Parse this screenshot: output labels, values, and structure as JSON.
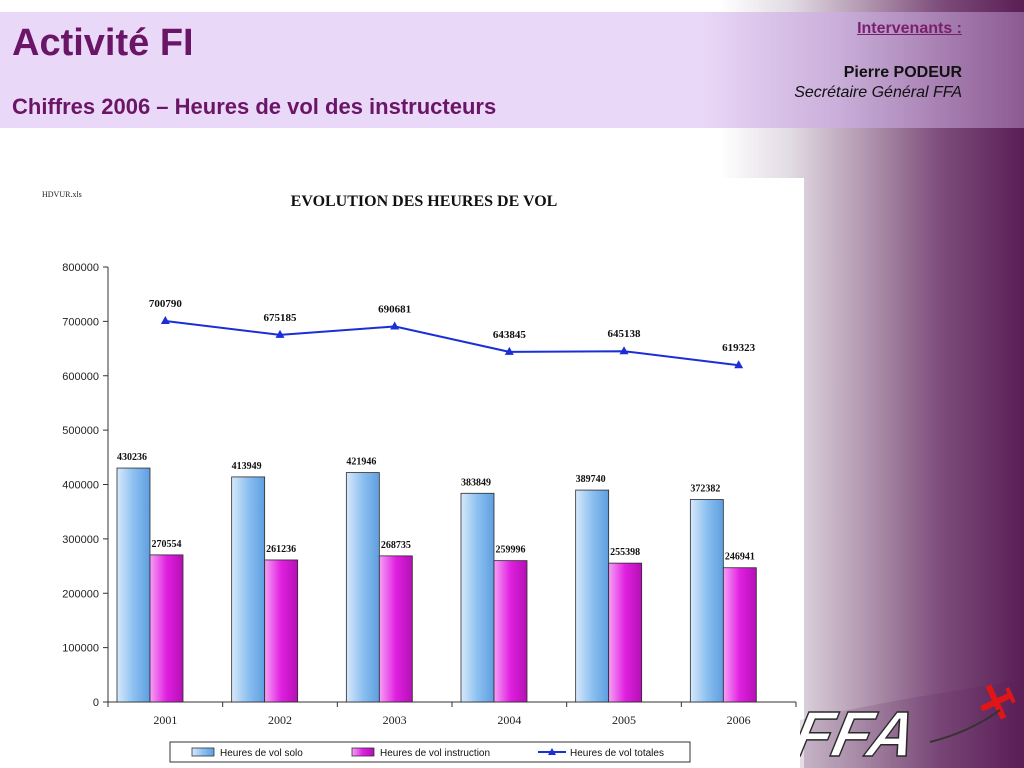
{
  "header": {
    "title": "Activité FI",
    "subtitle": "Chiffres 2006 – Heures de vol des instructeurs"
  },
  "speakers": {
    "label": "Intervenants :",
    "name": "Pierre PODEUR",
    "role": "Secrétaire Général FFA"
  },
  "logo": {
    "text": "FFA",
    "icon": "airplane-icon"
  },
  "chart_data": {
    "type": "bar",
    "file_label": "HDVUR.xls",
    "title": "EVOLUTION DES HEURES DE VOL",
    "categories": [
      "2001",
      "2002",
      "2003",
      "2004",
      "2005",
      "2006"
    ],
    "ylim": [
      0,
      800000
    ],
    "yticks": [
      0,
      100000,
      200000,
      300000,
      400000,
      500000,
      600000,
      700000,
      800000
    ],
    "grid": false,
    "legend_position": "bottom",
    "series": [
      {
        "name": "Heures de vol solo",
        "type": "bar",
        "color": "#7ab4ec",
        "values": [
          430236,
          413949,
          421946,
          383849,
          389740,
          372382
        ]
      },
      {
        "name": "Heures de vol instruction",
        "type": "bar",
        "color": "#d21ad2",
        "values": [
          270554,
          261236,
          268735,
          259996,
          255398,
          246941
        ]
      },
      {
        "name": "Heures de vol totales",
        "type": "line",
        "color": "#1a2fd6",
        "values": [
          700790,
          675185,
          690681,
          643845,
          645138,
          619323
        ]
      }
    ]
  }
}
